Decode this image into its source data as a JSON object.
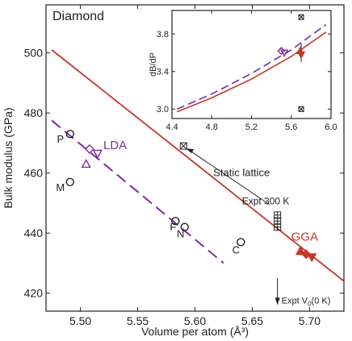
{
  "chart_data": [
    {
      "type": "scatter",
      "title": "Diamond",
      "xlabel": "Volume per atom (Å³)",
      "ylabel": "Bulk modulus (GPa)",
      "xlim": [
        5.47,
        5.73
      ],
      "ylim": [
        414,
        516
      ],
      "xticks": [
        5.5,
        5.55,
        5.6,
        5.65,
        5.7
      ],
      "xtick_labels": [
        "5.50",
        "5.55",
        "5.60",
        "5.65",
        "5.70"
      ],
      "yticks": [
        420,
        440,
        460,
        480,
        500
      ],
      "ytick_labels": [
        "420",
        "440",
        "460",
        "480",
        "500"
      ],
      "grid": false,
      "colors": {
        "gga": "#c0392b",
        "lda": "#7b2d9b",
        "data": "#222222"
      },
      "gga_line": {
        "label": "GGA",
        "x": [
          5.475,
          5.73
        ],
        "y": [
          501,
          424
        ]
      },
      "lda_line": {
        "label": "LDA",
        "x": [
          5.475,
          5.625
        ],
        "y": [
          477.5,
          430
        ]
      },
      "points": [
        {
          "label": "P",
          "x": 5.491,
          "y": 473,
          "marker": "circle",
          "color": "#222222"
        },
        {
          "label": "M",
          "x": 5.491,
          "y": 457,
          "marker": "circle",
          "color": "#222222"
        },
        {
          "label": "F",
          "x": 5.583,
          "y": 444,
          "marker": "circle",
          "color": "#222222"
        },
        {
          "label": "N",
          "x": 5.591,
          "y": 442,
          "marker": "circle",
          "color": "#222222"
        },
        {
          "label": "C",
          "x": 5.64,
          "y": 437,
          "marker": "circle",
          "color": "#222222"
        },
        {
          "label": "",
          "x": 5.508,
          "y": 468,
          "marker": "diamond-open",
          "color": "#7b2d9b"
        },
        {
          "label": "",
          "x": 5.515,
          "y": 466.5,
          "marker": "triangle-down-open",
          "color": "#7b2d9b"
        },
        {
          "label": "",
          "x": 5.505,
          "y": 463,
          "marker": "triangle-open",
          "color": "#7b2d9b"
        },
        {
          "label": "",
          "x": 5.692,
          "y": 434,
          "marker": "triangle-filled",
          "color": "#c0392b"
        },
        {
          "label": "",
          "x": 5.697,
          "y": 433,
          "marker": "diamond-filled",
          "color": "#c0392b"
        },
        {
          "label": "",
          "x": 5.702,
          "y": 432,
          "marker": "triangle-down-filled",
          "color": "#c0392b"
        },
        {
          "label": "",
          "x": 5.59,
          "y": 469,
          "marker": "square-x",
          "color": "#222222"
        },
        {
          "label": "",
          "x": 5.672,
          "y": 446,
          "marker": "square-grid",
          "color": "#222222"
        },
        {
          "label": "",
          "x": 5.672,
          "y": 444,
          "marker": "square-grid",
          "color": "#222222"
        },
        {
          "label": "",
          "x": 5.672,
          "y": 442,
          "marker": "square-grid",
          "color": "#222222"
        }
      ],
      "annotations": {
        "static_lattice": "Static lattice",
        "expt_300k": "Expt 300 K",
        "expt_v0_prefix": "Expt V",
        "expt_v0_sub": "0",
        "expt_v0_suffix": "(0 K)",
        "expt_v0_x": 5.672
      }
    },
    {
      "type": "line",
      "title": "",
      "xlabel": "",
      "ylabel": "dB/dP",
      "xlim": [
        4.4,
        6.0
      ],
      "ylim": [
        2.9,
        4.05
      ],
      "xticks": [
        4.4,
        4.8,
        5.2,
        5.6,
        6.0
      ],
      "xtick_labels": [
        "4.4",
        "4.8",
        "5.2",
        "5.6",
        "6.0"
      ],
      "yticks": [
        3.0,
        3.4,
        3.8
      ],
      "ytick_labels": [
        "3.0",
        "3.4",
        "3.8"
      ],
      "series": [
        {
          "name": "GGA",
          "x": [
            4.45,
            4.8,
            5.2,
            5.6,
            5.95
          ],
          "y": [
            2.97,
            3.12,
            3.32,
            3.56,
            3.82
          ],
          "color": "#c0392b",
          "style": "solid"
        },
        {
          "name": "LDA",
          "x": [
            4.45,
            4.8,
            5.2,
            5.6,
            5.95
          ],
          "y": [
            3.0,
            3.16,
            3.38,
            3.63,
            3.9
          ],
          "color": "#7b2d9b",
          "style": "dashed"
        }
      ],
      "points": [
        {
          "x": 5.7,
          "y": 3.98,
          "marker": "square-x"
        },
        {
          "x": 5.7,
          "y": 3.0,
          "marker": "square-x"
        },
        {
          "x": 5.5,
          "y": 3.62,
          "marker": "diamond-open",
          "color": "#7b2d9b"
        },
        {
          "x": 5.53,
          "y": 3.6,
          "marker": "triangle-down-open",
          "color": "#7b2d9b"
        },
        {
          "x": 5.69,
          "y": 3.62,
          "marker": "triangle-filled",
          "color": "#c0392b"
        },
        {
          "x": 5.7,
          "y": 3.58,
          "marker": "triangle-down-filled",
          "color": "#c0392b"
        }
      ],
      "error_bar": {
        "x": 5.7,
        "y_low": 3.5,
        "y_high": 3.7
      }
    }
  ]
}
